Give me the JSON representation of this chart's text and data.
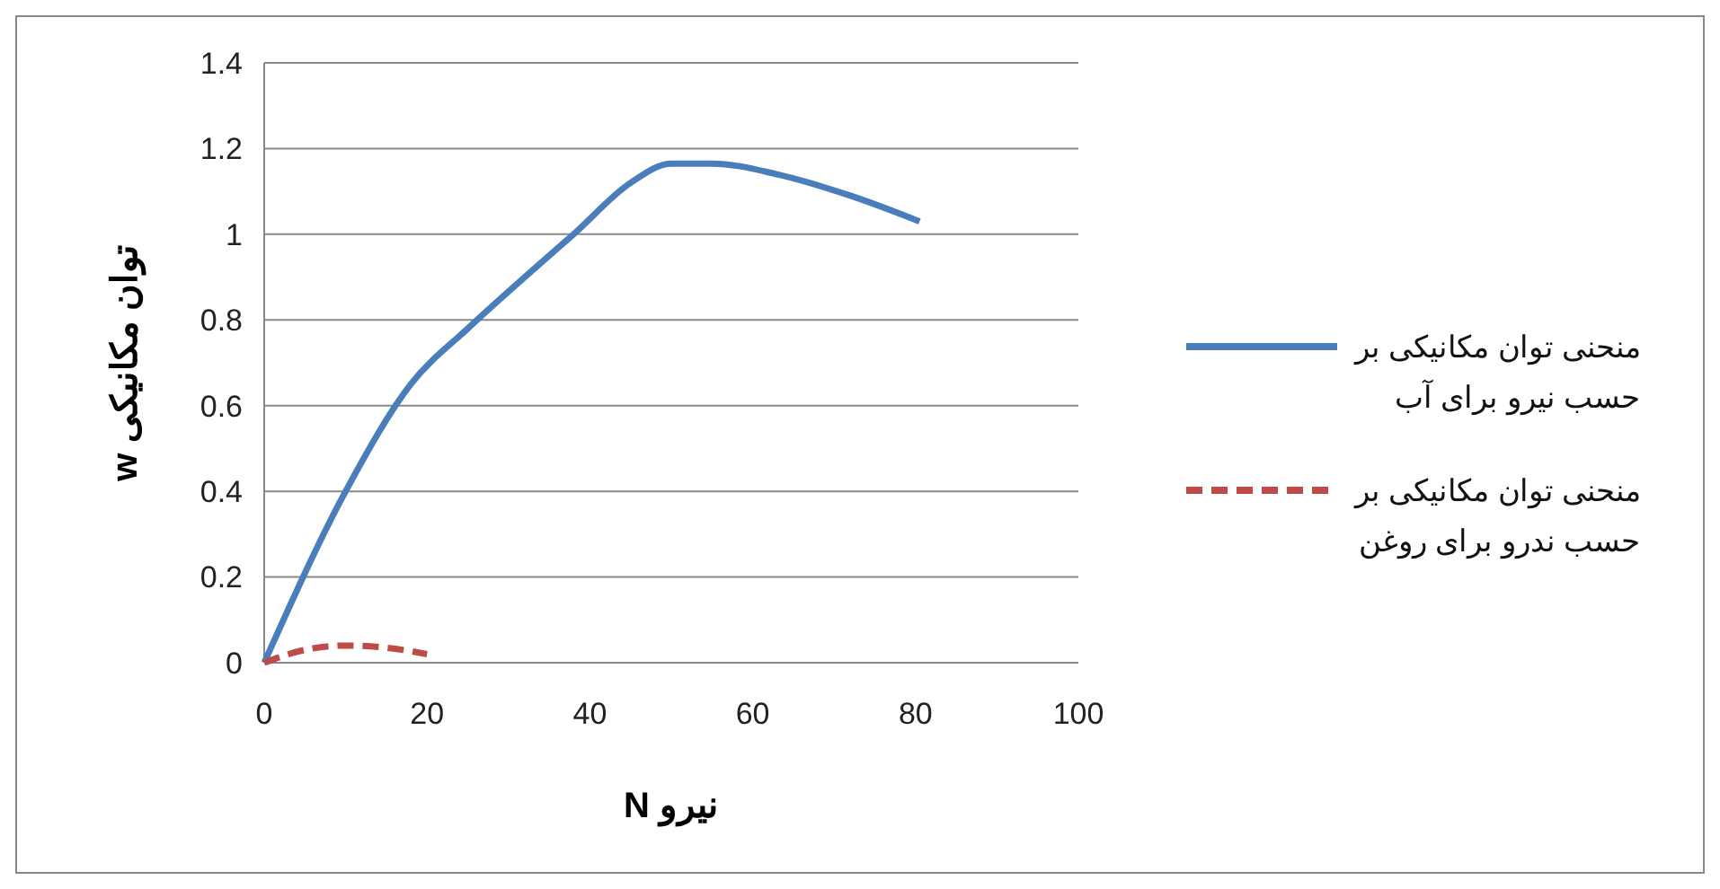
{
  "chart_data": {
    "type": "line",
    "xlabel": "نیرو N",
    "ylabel": "توان مکانیکی w",
    "xlim": [
      0,
      100
    ],
    "ylim": [
      0,
      1.4
    ],
    "xticks": [
      0,
      20,
      40,
      60,
      80,
      100
    ],
    "yticks": [
      0,
      0.2,
      0.4,
      0.6,
      0.8,
      1,
      1.2,
      1.4
    ],
    "grid": "y",
    "legend": "right",
    "series": [
      {
        "name": "منحنی توان مکانیکی بر حسب نیرو برای آب",
        "color": "#4a7ebb",
        "line_style": "solid",
        "x": [
          0,
          10,
          18,
          25,
          32,
          38,
          45,
          50,
          55,
          63,
          72,
          80.5
        ],
        "values": [
          0,
          0.4,
          0.65,
          0.78,
          0.9,
          1.0,
          1.12,
          1.165,
          1.165,
          1.14,
          1.09,
          1.03
        ]
      },
      {
        "name": "منحنی توان مکانیکی بر حسب ندرو برای روغن",
        "color": "#be4b48",
        "line_style": "dashed",
        "x": [
          0,
          5,
          10,
          15,
          20
        ],
        "values": [
          0,
          0.03,
          0.04,
          0.035,
          0.02
        ]
      }
    ]
  }
}
